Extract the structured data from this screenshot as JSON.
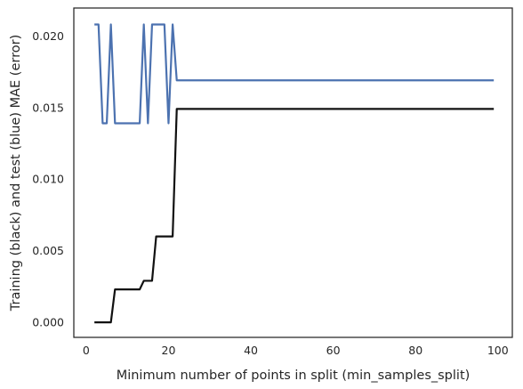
{
  "chart_data": {
    "type": "line",
    "xlabel": "Minimum number of points in split (min_samples_split)",
    "ylabel": "Training (black) and test (blue) MAE (error)",
    "xlim": [
      -3,
      103.5
    ],
    "ylim": [
      -0.00105,
      0.02195
    ],
    "xticks": [
      0,
      20,
      40,
      60,
      80,
      100
    ],
    "xtick_labels": [
      "0",
      "20",
      "40",
      "60",
      "80",
      "100"
    ],
    "yticks": [
      0.0,
      0.005,
      0.01,
      0.015,
      0.02
    ],
    "ytick_labels": [
      "0.000",
      "0.005",
      "0.010",
      "0.015",
      "0.020"
    ],
    "grid": false,
    "series": [
      {
        "color": "#111111",
        "x": [
          2,
          3,
          4,
          5,
          6,
          7,
          8,
          9,
          10,
          11,
          12,
          13,
          14,
          15,
          16,
          17,
          18,
          19,
          20,
          21,
          22,
          99
        ],
        "y": [
          0.0,
          0.0,
          0.0,
          0.0,
          0.0,
          0.0023,
          0.0023,
          0.0023,
          0.0023,
          0.0023,
          0.0023,
          0.0023,
          0.0029,
          0.0029,
          0.0029,
          0.006,
          0.006,
          0.006,
          0.006,
          0.006,
          0.0149,
          0.0149
        ]
      },
      {
        "color": "#4c72b0",
        "x": [
          2,
          3,
          4,
          5,
          6,
          7,
          8,
          9,
          10,
          11,
          12,
          13,
          14,
          15,
          16,
          17,
          18,
          19,
          20,
          21,
          22,
          99
        ],
        "y": [
          0.0208,
          0.0208,
          0.0139,
          0.0139,
          0.0208,
          0.0139,
          0.0139,
          0.0139,
          0.0139,
          0.0139,
          0.0139,
          0.0139,
          0.0208,
          0.0139,
          0.0208,
          0.0208,
          0.0208,
          0.0208,
          0.0139,
          0.0208,
          0.0169,
          0.0169
        ]
      }
    ]
  }
}
